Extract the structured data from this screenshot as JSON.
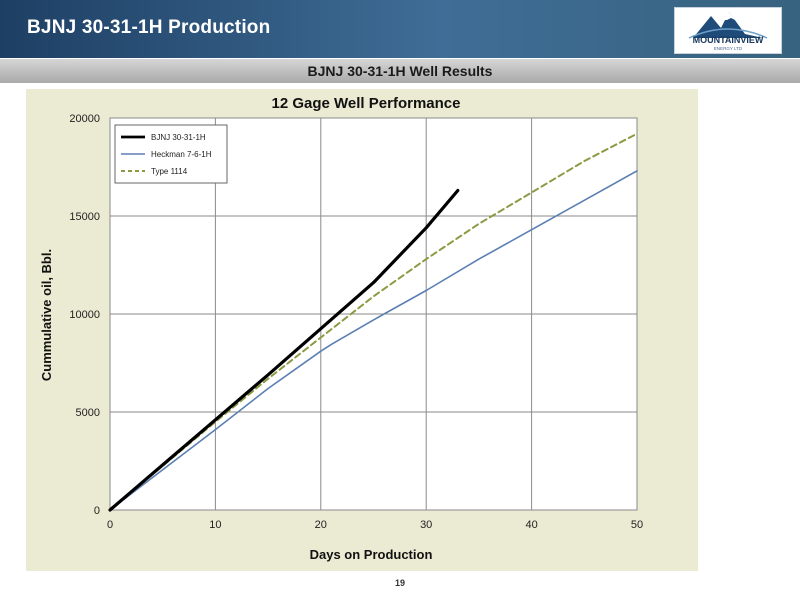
{
  "header": {
    "title": "BJNJ 30-31-1H Production",
    "logo": {
      "name": "MOUNTAINVIEW",
      "tagline": "ENERGY LTD"
    },
    "subtitle": "BJNJ 30-31-1H Well Results"
  },
  "footer": {
    "page_number": "19"
  },
  "colors": {
    "header_dark": "#1e3f64",
    "chart_background": "#ebebd3",
    "plot_background": "#ffffff"
  },
  "chart_data": {
    "type": "line",
    "title": "12 Gage Well Performance",
    "xlabel": "Days on Production",
    "ylabel": "Cummulative oil, Bbl.",
    "xlim": [
      0,
      50
    ],
    "ylim": [
      0,
      20000
    ],
    "xticks": [
      0,
      10,
      20,
      30,
      40,
      50
    ],
    "yticks": [
      0,
      5000,
      10000,
      15000,
      20000
    ],
    "grid": true,
    "legend_position": "top-left",
    "series": [
      {
        "name": "BJNJ 30-31-1H",
        "color": "#000000",
        "style": "solid-thick",
        "x": [
          0,
          5,
          10,
          15,
          20,
          25,
          30,
          33
        ],
        "y": [
          0,
          2300,
          4600,
          6900,
          9250,
          11600,
          14400,
          16300
        ]
      },
      {
        "name": "Heckman 7-6-1H",
        "color": "#5b7fb3",
        "style": "solid",
        "x": [
          0,
          5,
          10,
          15,
          20,
          21,
          25,
          30,
          35,
          40,
          45,
          50
        ],
        "y": [
          0,
          2050,
          4100,
          6200,
          8100,
          8450,
          9700,
          11200,
          12800,
          14300,
          15800,
          17300
        ]
      },
      {
        "name": "Type 1114",
        "color": "#8c9a44",
        "style": "dashed",
        "x": [
          0,
          5,
          10,
          15,
          20,
          25,
          30,
          35,
          40,
          45,
          50
        ],
        "y": [
          0,
          2250,
          4500,
          6700,
          8800,
          10900,
          12800,
          14600,
          16200,
          17800,
          19200
        ]
      }
    ]
  }
}
